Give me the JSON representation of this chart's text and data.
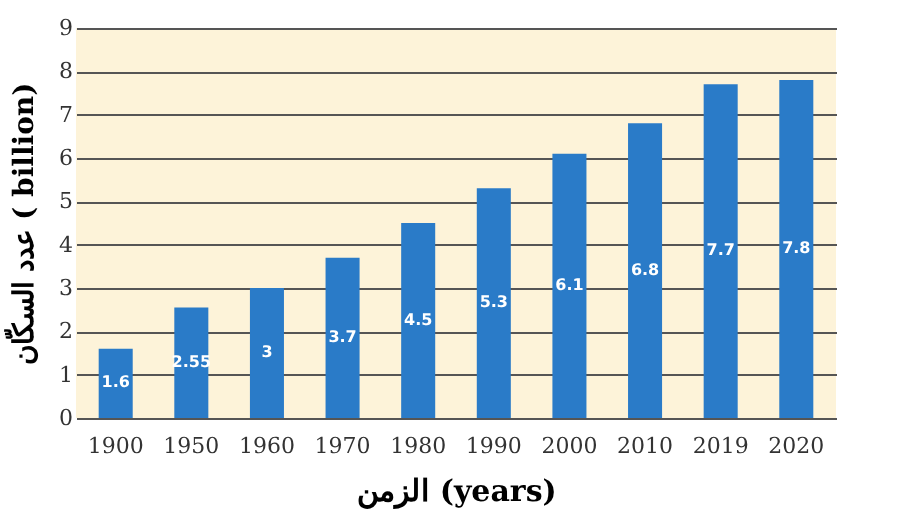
{
  "chart_data": {
    "type": "bar",
    "xlabel": "الزمن (years)",
    "ylabel": "عدد السكّان ( billion)",
    "categories": [
      "1900",
      "1950",
      "1960",
      "1970",
      "1980",
      "1990",
      "2000",
      "2010",
      "2019",
      "2020"
    ],
    "values": [
      1.6,
      2.55,
      3,
      3.7,
      4.5,
      5.3,
      6.1,
      6.8,
      7.7,
      7.8
    ],
    "color": "#2a7bc8",
    "ylim": [
      0,
      9
    ],
    "yticks": [
      0,
      1,
      2,
      3,
      4,
      5,
      6,
      7,
      8,
      9
    ],
    "grid": "y",
    "data_labels": true
  }
}
